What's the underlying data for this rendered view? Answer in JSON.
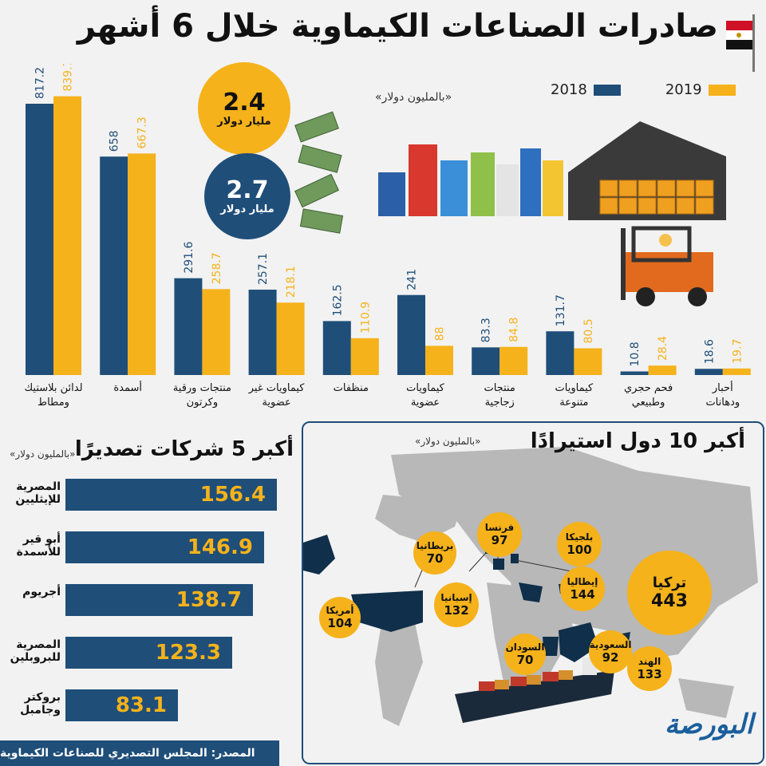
{
  "title": "صادرات الصناعات الكيماوية خلال 6 أشهر",
  "unit_label": "«بالمليون دولار»",
  "legend": {
    "y2018": "2018",
    "y2019": "2019"
  },
  "colors": {
    "y2018": "#1f4e79",
    "y2019": "#f5b21b",
    "map": "#b8b8b8",
    "map_dark": "#0f2f4a"
  },
  "totals": [
    {
      "value": "2.4",
      "label": "مليار دولار"
    },
    {
      "value": "2.7",
      "label": "مليار دولار"
    }
  ],
  "chart_data": {
    "type": "bar",
    "categories": [
      "لدائن بلاستيك ومطاط",
      "أسمدة",
      "منتجات ورقية وكرتون",
      "كيماويات غير عضوية",
      "منظفات",
      "كيماويات عضوية",
      "منتجات زجاجية",
      "كيماويات متنوعة",
      "فحم حجري وطبيعي",
      "أحبار ودهانات"
    ],
    "series": [
      {
        "name": "2018",
        "values": [
          817.2,
          658,
          291.6,
          257.1,
          162.5,
          241,
          83.3,
          131.7,
          10.8,
          18.6
        ]
      },
      {
        "name": "2019",
        "values": [
          839.7,
          667.3,
          258.7,
          218.1,
          110.9,
          88,
          84.8,
          80.5,
          28.4,
          19.7
        ]
      }
    ],
    "labels": {
      "2018": [
        "817.2",
        "658",
        "291.6",
        "257.1",
        "162.5",
        "241",
        "83.3",
        "131.7",
        "10.8",
        "18.6"
      ],
      "2019": [
        "839.7",
        "667.3",
        "258.7",
        "218.1",
        "110.9",
        "88",
        "84.8",
        "80.5",
        "28.4",
        "19.7"
      ]
    },
    "ylim": [
      0,
      850
    ]
  },
  "companies": {
    "title": "أكبر 5 شركات تصديرًا",
    "unit": "«بالمليون دولار»",
    "items": [
      {
        "name": "المصرية للإيثليين",
        "value": 156.4,
        "label": "156.4"
      },
      {
        "name": "أبو قير للأسمدة",
        "value": 146.9,
        "label": "146.9"
      },
      {
        "name": "أجريوم",
        "value": 138.7,
        "label": "138.7"
      },
      {
        "name": "المصرية للبروبلين",
        "value": 123.3,
        "label": "123.3"
      },
      {
        "name": "بروكتر وجامبل",
        "value": 83.1,
        "label": "83.1"
      }
    ]
  },
  "countries": {
    "title": "أكبر 10 دول استيرادًا",
    "unit": "«بالمليون دولار»",
    "items": [
      {
        "name": "تركيا",
        "value": "443"
      },
      {
        "name": "بلجيكا",
        "value": "100"
      },
      {
        "name": "فرنسا",
        "value": "97"
      },
      {
        "name": "بريطانيا",
        "value": "70"
      },
      {
        "name": "إيطاليا",
        "value": "144"
      },
      {
        "name": "إسبانيا",
        "value": "132"
      },
      {
        "name": "أمريكا",
        "value": "104"
      },
      {
        "name": "السعودية",
        "value": "92"
      },
      {
        "name": "السودان",
        "value": "70"
      },
      {
        "name": "الهند",
        "value": "133"
      }
    ]
  },
  "source": "المصدر: المجلس التصديري للصناعات الكيماوية",
  "brand": "البورصة"
}
